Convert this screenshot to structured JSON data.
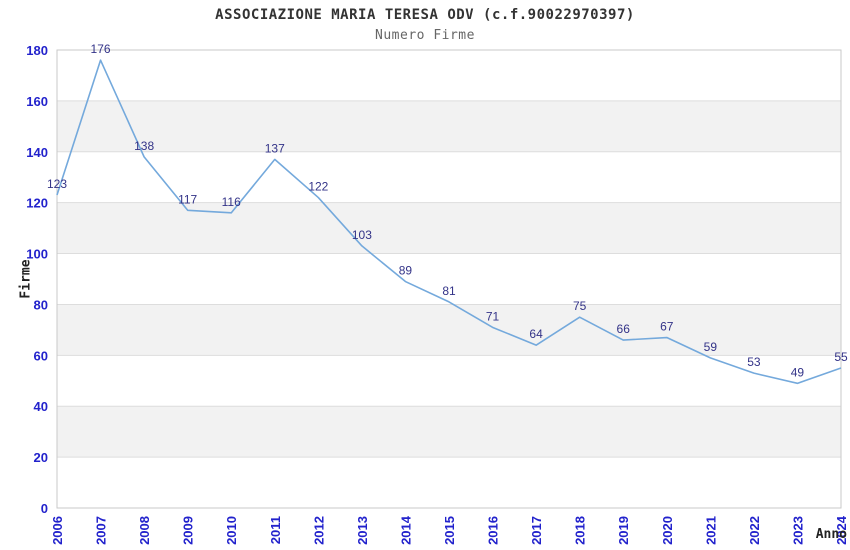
{
  "chart_data": {
    "type": "line",
    "title": "ASSOCIAZIONE MARIA TERESA ODV (c.f.90022970397)",
    "subtitle": "Numero Firme",
    "xlabel": "Anno",
    "ylabel": "Firme",
    "categories": [
      "2006",
      "2007",
      "2008",
      "2009",
      "2010",
      "2011",
      "2012",
      "2013",
      "2014",
      "2015",
      "2016",
      "2017",
      "2018",
      "2019",
      "2020",
      "2021",
      "2022",
      "2023",
      "2024"
    ],
    "series": [
      {
        "name": "Numero Firme",
        "values": [
          123,
          176,
          138,
          117,
          116,
          137,
          122,
          103,
          89,
          81,
          71,
          64,
          75,
          66,
          67,
          59,
          53,
          49,
          55
        ]
      }
    ],
    "ylim": [
      0,
      180
    ],
    "ytick_step": 20,
    "grid": "horizontal-bands-alternating",
    "legend": "none",
    "data_labels": true,
    "colors": {
      "line": "#74a9dc",
      "data_label": "#333388",
      "tick_label": "#2222cc",
      "title": "#333333",
      "subtitle": "#666666",
      "axis_title": "#222222",
      "band": "#f2f2f2",
      "gridline": "#dddddd",
      "plot_border": "#c9c9c9",
      "background": "#ffffff"
    }
  }
}
